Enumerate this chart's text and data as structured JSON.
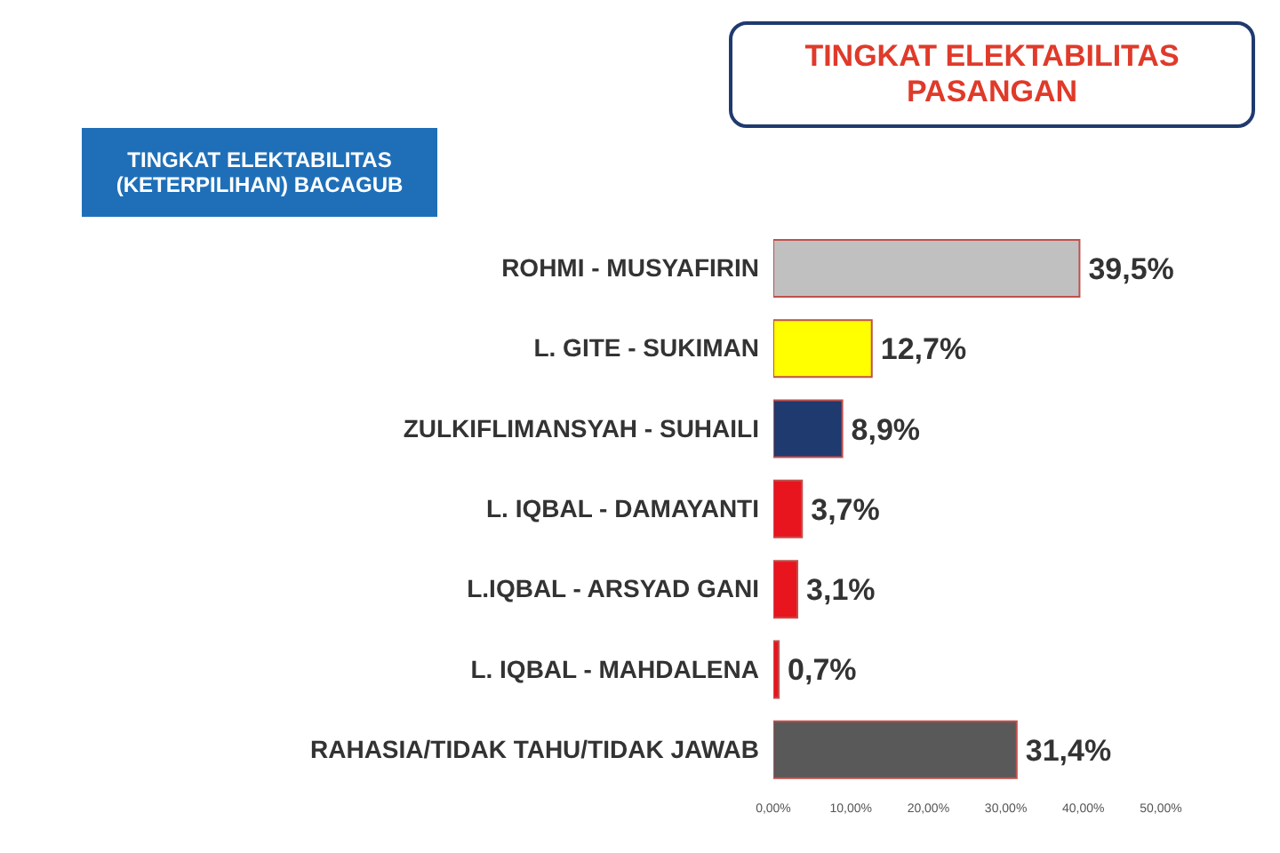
{
  "chart_data": {
    "type": "bar",
    "orientation": "horizontal",
    "title": "TINGKAT ELEKTABILITAS PASANGAN",
    "subtitle": "TINGKAT ELEKTABILITAS (KETERPILIHAN) BACAGUB",
    "categories": [
      "ROHMI - MUSYAFIRIN",
      "L. GITE - SUKIMAN",
      "ZULKIFLIMANSYAH - SUHAILI",
      "L. IQBAL - DAMAYANTI",
      "L.IQBAL - ARSYAD GANI",
      "L. IQBAL - MAHDALENA",
      "RAHASIA/TIDAK TAHU/TIDAK JAWAB"
    ],
    "values": [
      39.5,
      12.7,
      8.9,
      3.7,
      3.1,
      0.7,
      31.4
    ],
    "colors": [
      "#c0c0c0",
      "#ffff00",
      "#1f3a6e",
      "#e8141e",
      "#e8141e",
      "#e8141e",
      "#595959"
    ],
    "value_labels": [
      "39,5%",
      "12,7%",
      "8,9%",
      "3,7%",
      "3,1%",
      "0,7%",
      "31,4%"
    ],
    "xlim": [
      0,
      50
    ],
    "xticks": [
      {
        "value": 0,
        "label": "0,00%"
      },
      {
        "value": 10,
        "label": "10,00%"
      },
      {
        "value": 20,
        "label": "20,00%"
      },
      {
        "value": 30,
        "label": "30,00%"
      },
      {
        "value": 40,
        "label": "40,00%"
      },
      {
        "value": 50,
        "label": "50,00%"
      }
    ],
    "grid": false,
    "legend": false
  }
}
